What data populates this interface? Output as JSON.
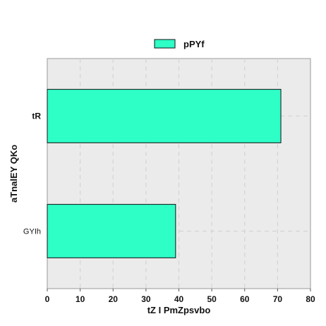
{
  "chart_data": {
    "type": "bar",
    "orientation": "horizontal",
    "categories": [
      "tR",
      "GYIh"
    ],
    "series": [
      {
        "name": "pPYf",
        "values": [
          71,
          39
        ]
      }
    ],
    "xlabel": "tZ I PmZpsvbo",
    "ylabel": "aTnalEY QKo",
    "xlim": [
      0,
      80
    ],
    "xticks": [
      0,
      10,
      20,
      30,
      40,
      50,
      60,
      70,
      80
    ],
    "grid": true,
    "legend_position": "top-center",
    "colors": {
      "bar_fill": "#2dffc6",
      "bar_stroke": "#111111",
      "plot_background": "#ebebeb",
      "grid": "#d4d4d4"
    }
  }
}
